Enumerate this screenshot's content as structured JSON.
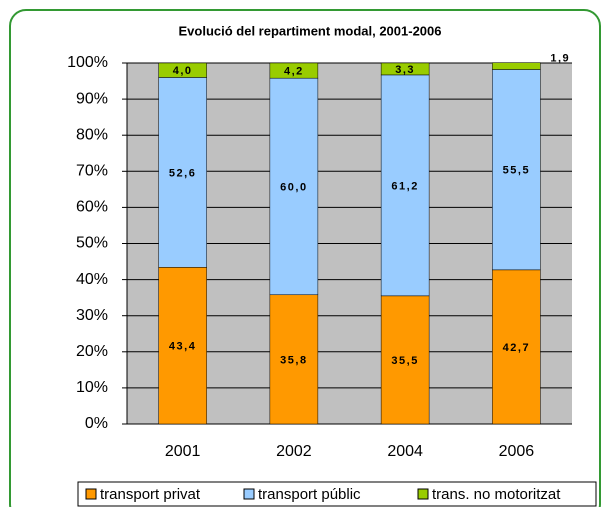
{
  "chart_data": {
    "type": "stacked_bar",
    "title": "Evolució del repartiment modal, 2001-2006",
    "categories": [
      "2001",
      "2002",
      "2004",
      "2006"
    ],
    "series": [
      {
        "name": "transport privat",
        "color": "#ff9900",
        "values": [
          43.4,
          35.8,
          35.5,
          42.7
        ],
        "value_labels": [
          "43,4",
          "35,8",
          "35,5",
          "42,7"
        ]
      },
      {
        "name": "transport públic",
        "color": "#99ccff",
        "values": [
          52.6,
          60.0,
          61.2,
          55.5
        ],
        "value_labels": [
          "52,6",
          "60,0",
          "61,2",
          "55,5"
        ]
      },
      {
        "name": "trans. no motoritzat",
        "color": "#99cc00",
        "values": [
          4.0,
          4.2,
          3.3,
          1.9
        ],
        "value_labels": [
          "4,0",
          "4,2",
          "3,3",
          "1,9"
        ]
      }
    ],
    "ylim": [
      0,
      100
    ],
    "yticks": [
      {
        "value": 0,
        "label": "0%"
      },
      {
        "value": 10,
        "label": "10%"
      },
      {
        "value": 20,
        "label": "20%"
      },
      {
        "value": 30,
        "label": "30%"
      },
      {
        "value": 40,
        "label": "40%"
      },
      {
        "value": 50,
        "label": "50%"
      },
      {
        "value": 60,
        "label": "60%"
      },
      {
        "value": 70,
        "label": "70%"
      },
      {
        "value": 80,
        "label": "80%"
      },
      {
        "value": 90,
        "label": "90%"
      },
      {
        "value": 100,
        "label": "100%"
      }
    ],
    "grid": true,
    "legend": "bottom"
  }
}
